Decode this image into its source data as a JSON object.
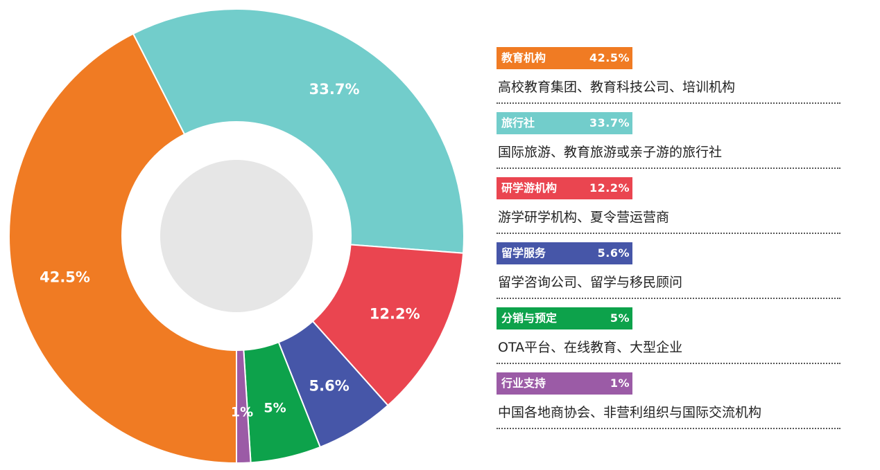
{
  "chart_data": {
    "type": "pie",
    "donut": true,
    "title": "",
    "legend": "right",
    "slices": [
      {
        "name": "教育机构",
        "value": 42.5,
        "label": "42.5%",
        "color": "#F07B23",
        "description": "高校教育集团、教育科技公司、培训机构"
      },
      {
        "name": "旅行社",
        "value": 33.7,
        "label": "33.7%",
        "color": "#72CDCB",
        "description": "国际旅游、教育旅游或亲子游的旅行社"
      },
      {
        "name": "研学游机构",
        "value": 12.2,
        "label": "12.2%",
        "color": "#EA4550",
        "description": "游学研学机构、夏令营运营商"
      },
      {
        "name": "留学服务",
        "value": 5.6,
        "label": "5.6%",
        "color": "#4656A8",
        "description": "留学咨询公司、留学与移民顾问"
      },
      {
        "name": "分销与预定",
        "value": 5,
        "label": "5%",
        "color": "#0DA24B",
        "description": "OTA平台、在线教育、大型企业"
      },
      {
        "name": "行业支持",
        "value": 1,
        "label": "1%",
        "color": "#9B5BA6",
        "description": "中国各地商协会、非营利组织与国际交流机构"
      }
    ],
    "inner_circle_color": "#E6E6E6"
  }
}
